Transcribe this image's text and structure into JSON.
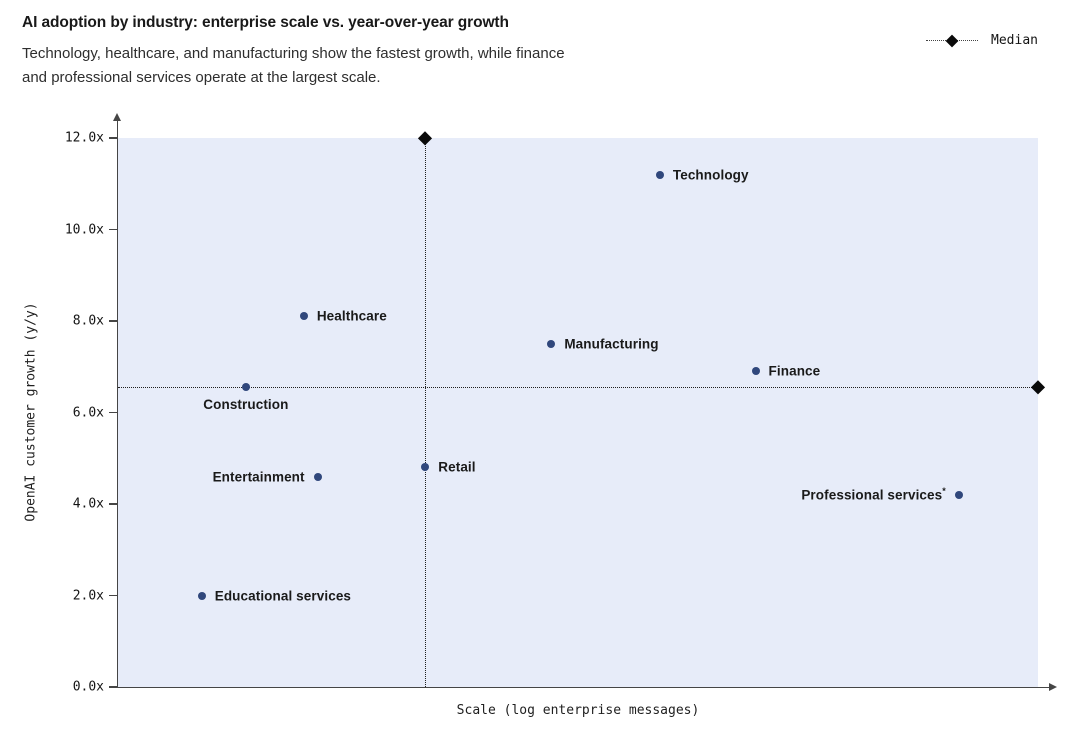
{
  "header": {
    "title": "AI adoption by industry: enterprise scale vs. year-over-year growth",
    "subtitle_lines": [
      "Technology, healthcare, and manufacturing show the fastest growth, while finance",
      "and professional services operate at the largest scale."
    ]
  },
  "legend": {
    "label": "Median",
    "marker": "diamond-on-dotted-line",
    "position": "top-right"
  },
  "chart_data": {
    "type": "scatter",
    "title": "AI adoption by industry: enterprise scale vs. year-over-year growth",
    "xlabel": "Scale (log enterprise messages)",
    "ylabel": "OpenAI customer growth (y/y)",
    "x_axis": {
      "tick_labels_shown": false,
      "units": "relative position 0-1 along unlabeled log scale"
    },
    "y_axis": {
      "min": 0,
      "max": 12,
      "ticks": [
        {
          "value": 0,
          "label": "0.0x"
        },
        {
          "value": 2,
          "label": "2.0x"
        },
        {
          "value": 4,
          "label": "4.0x"
        },
        {
          "value": 6,
          "label": "6.0x"
        },
        {
          "value": 8,
          "label": "8.0x"
        },
        {
          "value": 10,
          "label": "10.0x"
        },
        {
          "value": 12,
          "label": "12.0x"
        }
      ]
    },
    "grid": false,
    "points": [
      {
        "label": "Technology",
        "x": 0.589,
        "y": 11.2,
        "label_side": "right"
      },
      {
        "label": "Healthcare",
        "x": 0.202,
        "y": 8.1,
        "label_side": "right"
      },
      {
        "label": "Manufacturing",
        "x": 0.471,
        "y": 7.5,
        "label_side": "right"
      },
      {
        "label": "Finance",
        "x": 0.693,
        "y": 6.9,
        "label_side": "right"
      },
      {
        "label": "Construction",
        "x": 0.139,
        "y": 6.55,
        "label_side": "below"
      },
      {
        "label": "Retail",
        "x": 0.334,
        "y": 4.8,
        "label_side": "right"
      },
      {
        "label": "Entertainment",
        "x": 0.217,
        "y": 4.6,
        "label_side": "left"
      },
      {
        "label": "Professional services",
        "x": 0.914,
        "y": 4.2,
        "label_side": "left",
        "label_suffix_superscript": "*"
      },
      {
        "label": "Educational services",
        "x": 0.091,
        "y": 2.0,
        "label_side": "right"
      }
    ],
    "median": {
      "x": 0.334,
      "y": 6.55,
      "note": "dotted vertical line topped with diamond at 12.0x; dotted horizontal line ending with diamond at right plot edge"
    }
  },
  "colors": {
    "plot_bg": "#e7ecf9",
    "point": "#30477c",
    "axis": "#454545",
    "dotted_line": "#1f1f1f",
    "title_text": "#191919",
    "subtitle_text": "#2e2e2e"
  }
}
